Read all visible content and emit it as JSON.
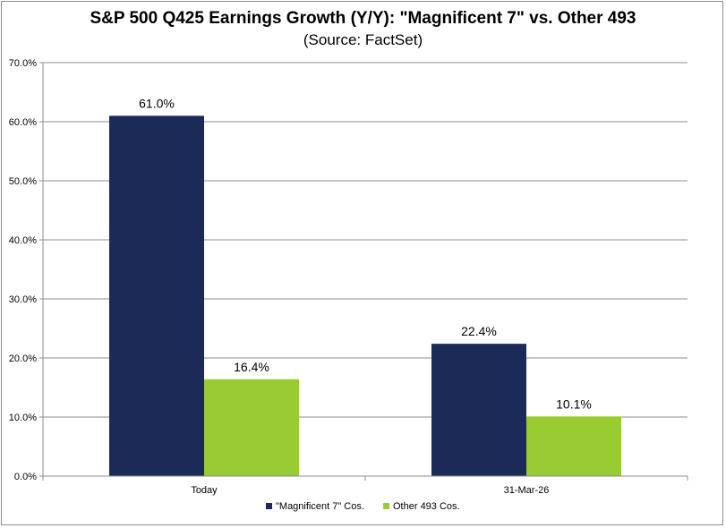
{
  "chart_data": {
    "type": "bar",
    "title": "S&P 500 Q425 Earnings Growth (Y/Y): \"Magnificent 7\" vs. Other 493",
    "subtitle": "(Source: FactSet)",
    "categories": [
      "Today",
      "31-Mar-26"
    ],
    "series": [
      {
        "name": "\"Magnificent 7\" Cos.",
        "values": [
          61.0,
          22.4
        ],
        "labels": [
          "61.0%",
          "22.4%"
        ],
        "color": "#1b2a56"
      },
      {
        "name": "Other 493 Cos.",
        "values": [
          16.4,
          10.1
        ],
        "labels": [
          "16.4%",
          "10.1%"
        ],
        "color": "#99cc33"
      }
    ],
    "ylim": [
      0,
      70
    ],
    "yticks": [
      0,
      10,
      20,
      30,
      40,
      50,
      60,
      70
    ],
    "ytick_labels": [
      "0.0%",
      "10.0%",
      "20.0%",
      "30.0%",
      "40.0%",
      "50.0%",
      "60.0%",
      "70.0%"
    ],
    "xlabel": "",
    "ylabel": "",
    "grid": true,
    "legend_position": "bottom"
  }
}
